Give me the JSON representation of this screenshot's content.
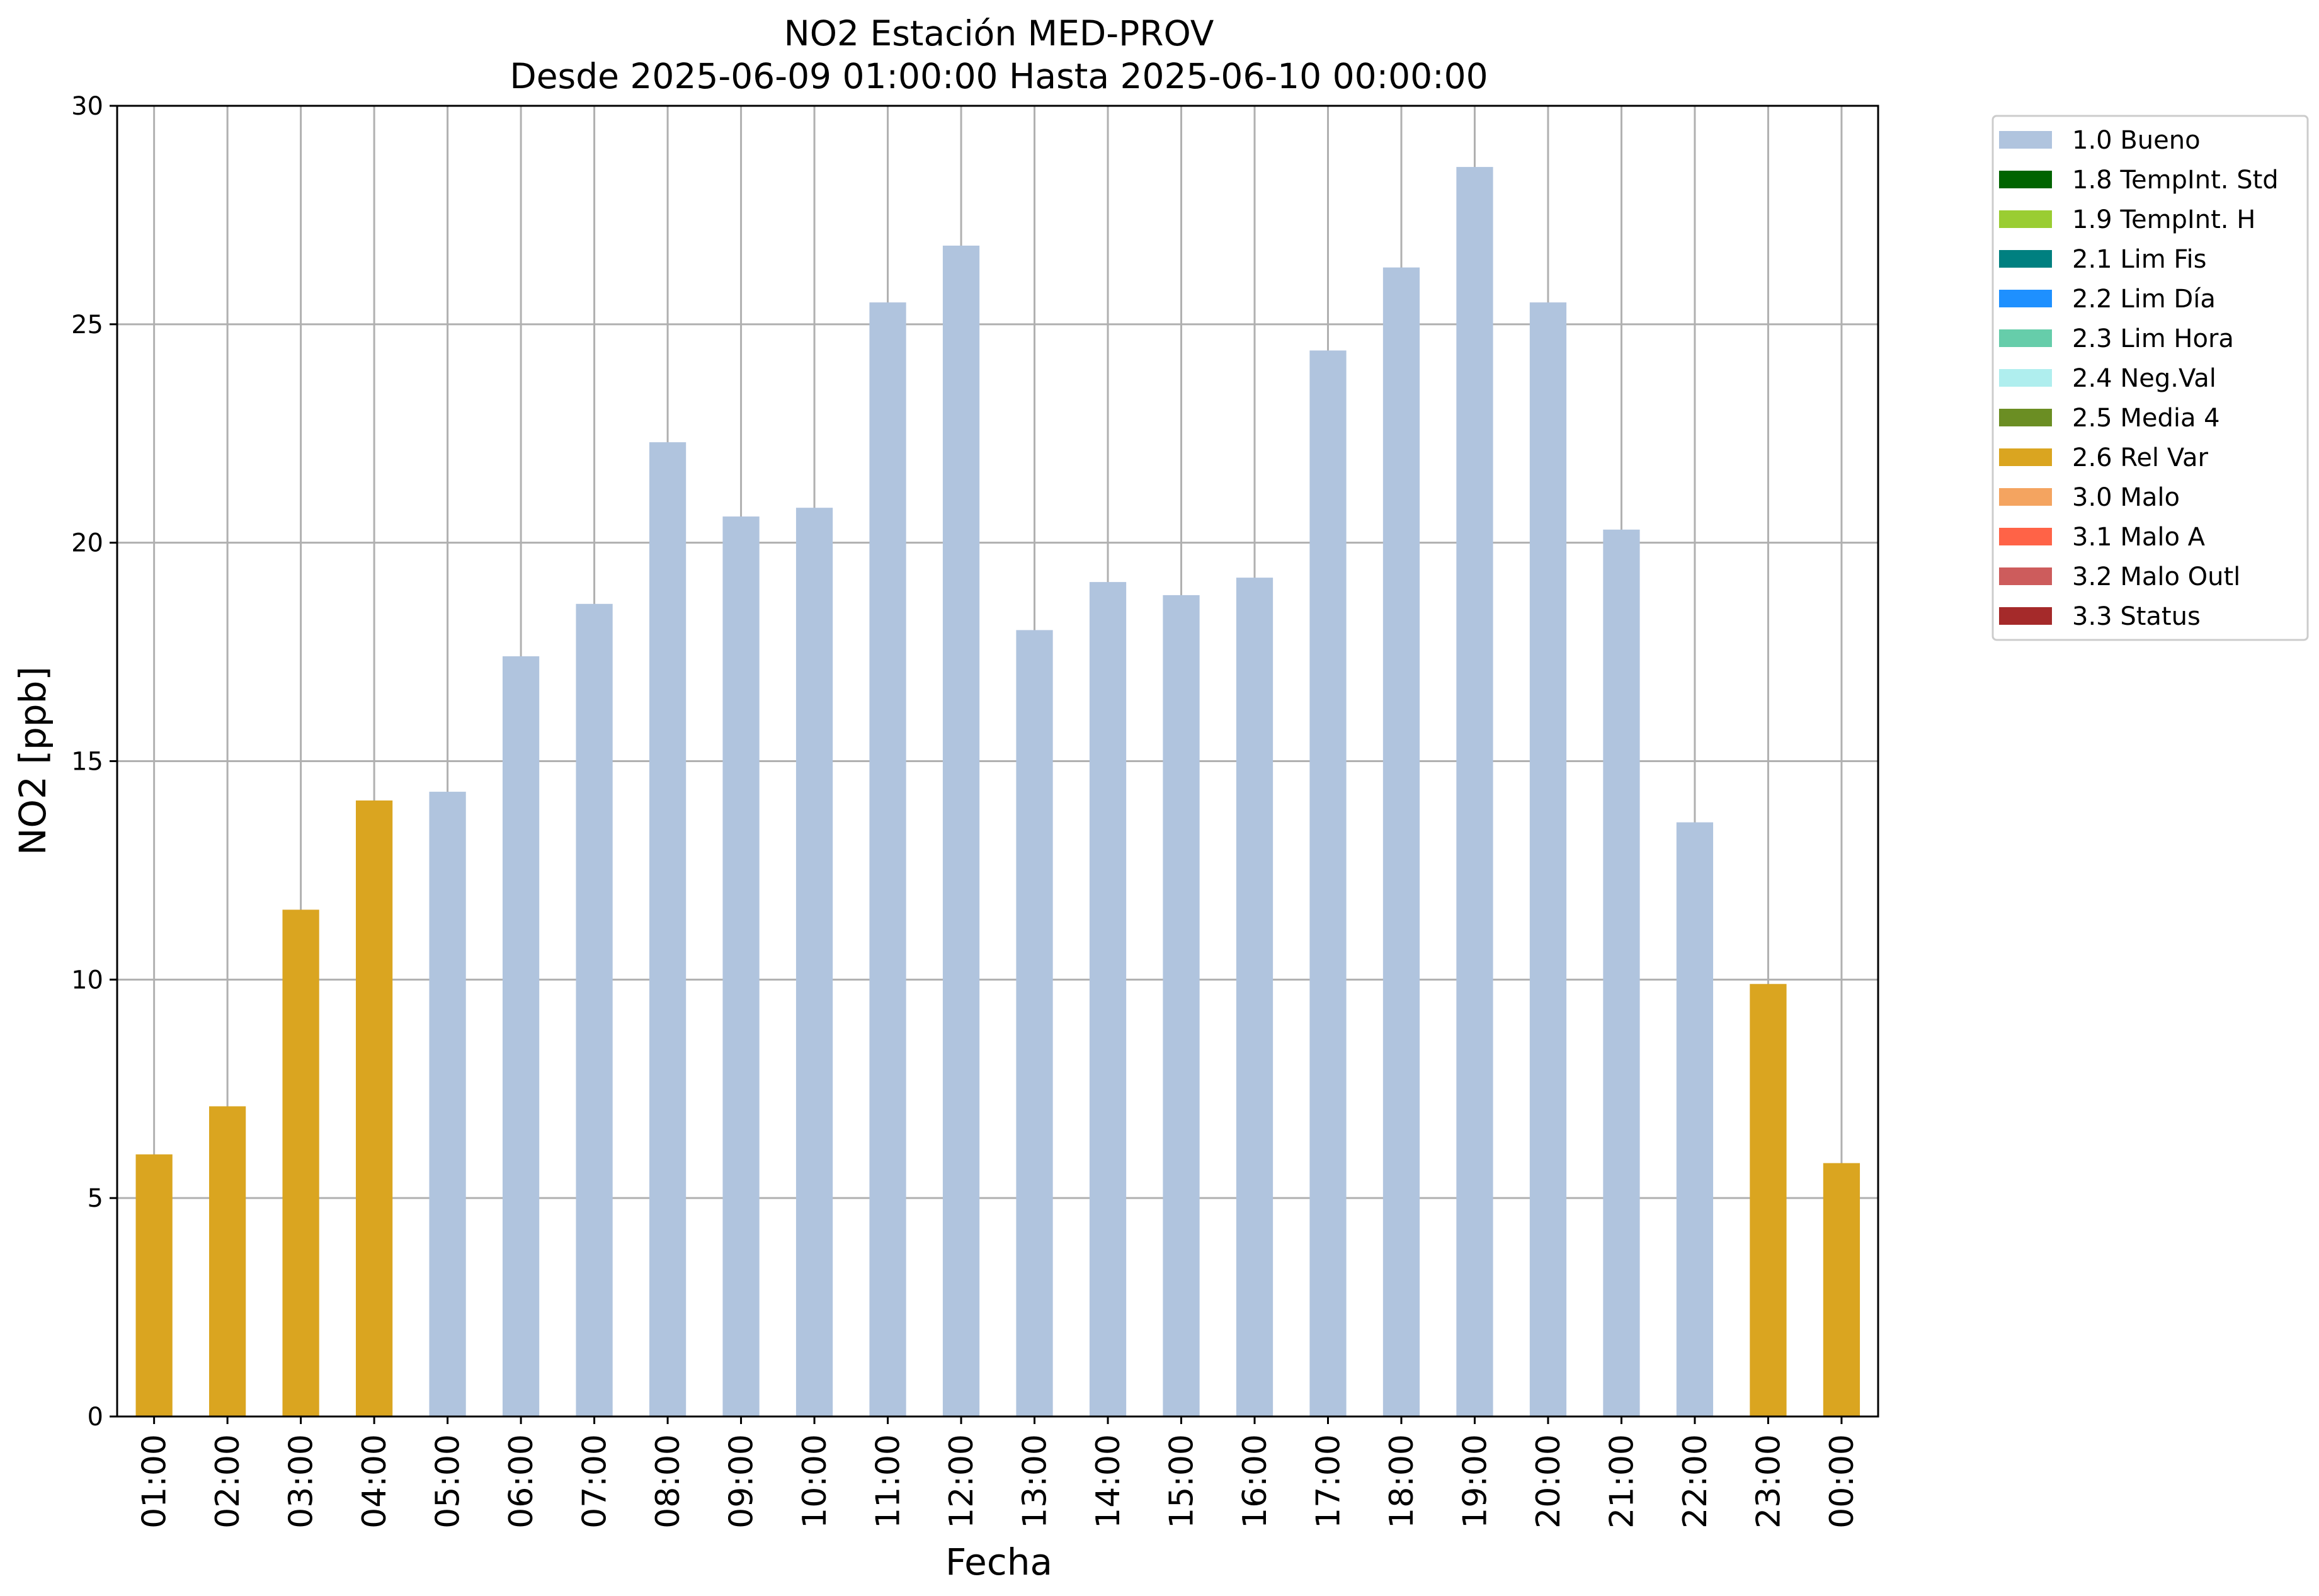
{
  "chart_data": {
    "type": "bar",
    "title": "NO2 Estación MED-PROV",
    "subtitle": "Desde 2025-06-09 01:00:00 Hasta 2025-06-10 00:00:00",
    "xlabel": "Fecha",
    "ylabel": "NO2 [ppb]",
    "ylim": [
      0,
      30
    ],
    "yticks": [
      0,
      5,
      10,
      15,
      20,
      25,
      30
    ],
    "grid": true,
    "legend_position": "outside-top-right",
    "categories": [
      "01:00",
      "02:00",
      "03:00",
      "04:00",
      "05:00",
      "06:00",
      "07:00",
      "08:00",
      "09:00",
      "10:00",
      "11:00",
      "12:00",
      "13:00",
      "14:00",
      "15:00",
      "16:00",
      "17:00",
      "18:00",
      "19:00",
      "20:00",
      "21:00",
      "22:00",
      "23:00",
      "00:00"
    ],
    "values": [
      6.0,
      7.1,
      11.6,
      14.1,
      14.3,
      17.4,
      18.6,
      22.3,
      20.6,
      20.8,
      25.5,
      26.8,
      18.0,
      19.1,
      18.8,
      19.2,
      24.4,
      26.3,
      28.6,
      25.5,
      20.3,
      13.6,
      9.9,
      5.8
    ],
    "flags": [
      "2.6 Rel Var",
      "2.6 Rel Var",
      "2.6 Rel Var",
      "2.6 Rel Var",
      "1.0 Bueno",
      "1.0 Bueno",
      "1.0 Bueno",
      "1.0 Bueno",
      "1.0 Bueno",
      "1.0 Bueno",
      "1.0 Bueno",
      "1.0 Bueno",
      "1.0 Bueno",
      "1.0 Bueno",
      "1.0 Bueno",
      "1.0 Bueno",
      "1.0 Bueno",
      "1.0 Bueno",
      "1.0 Bueno",
      "1.0 Bueno",
      "1.0 Bueno",
      "1.0 Bueno",
      "2.6 Rel Var",
      "2.6 Rel Var"
    ],
    "legend": [
      {
        "label": "1.0 Bueno",
        "color": "#b0c4de"
      },
      {
        "label": "1.8 TempInt. Std",
        "color": "#006400"
      },
      {
        "label": "1.9 TempInt. H",
        "color": "#9acd32"
      },
      {
        "label": "2.1 Lim Fis",
        "color": "#008080"
      },
      {
        "label": "2.2 Lim Día",
        "color": "#1e90ff"
      },
      {
        "label": "2.3 Lim Hora",
        "color": "#66cdaa"
      },
      {
        "label": "2.4 Neg.Val",
        "color": "#afeeee"
      },
      {
        "label": "2.5 Media 4",
        "color": "#6b8e23"
      },
      {
        "label": "2.6 Rel Var",
        "color": "#daa520"
      },
      {
        "label": "3.0 Malo",
        "color": "#f4a460"
      },
      {
        "label": "3.1 Malo A",
        "color": "#ff6347"
      },
      {
        "label": "3.2 Malo Outl",
        "color": "#cd5c5c"
      },
      {
        "label": "3.3 Status",
        "color": "#a52a2a"
      }
    ]
  }
}
